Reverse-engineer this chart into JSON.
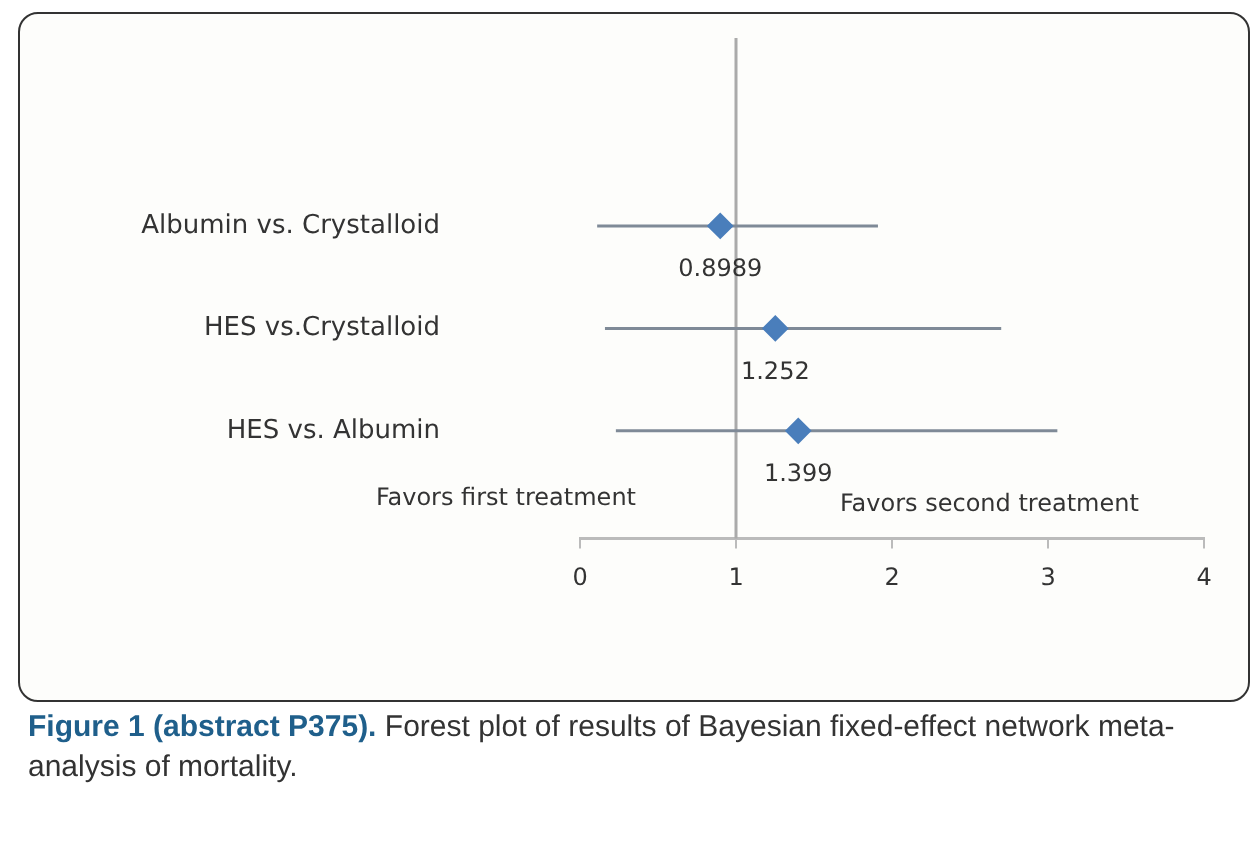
{
  "chart_data": {
    "type": "scatter",
    "orientation": "horizontal",
    "categories": [
      "Albumin vs. Crystalloid",
      "HES vs.Crystalloid",
      "HES vs. Albumin"
    ],
    "values": [
      0.8989,
      1.252,
      1.399
    ],
    "errors": [
      [
        0.11,
        1.91
      ],
      [
        0.16,
        2.7
      ],
      [
        0.23,
        3.06
      ]
    ],
    "color": "#4a7ebb",
    "marker": "diamond",
    "data_labels": true,
    "grid": false,
    "legend": false,
    "xlim": [
      0,
      4
    ],
    "xticks": [
      0,
      1,
      2,
      3,
      4
    ],
    "ref_lines": [
      {
        "axis": "x",
        "value": 1,
        "color": "#aaaaaa"
      }
    ],
    "annotations": [
      "Favors first treatment",
      "Favors second treatment",
      "Figure 1 (abstract P375). Forest plot of results of Bayesian fixed-effect network meta-analysis of mortality."
    ]
  }
}
